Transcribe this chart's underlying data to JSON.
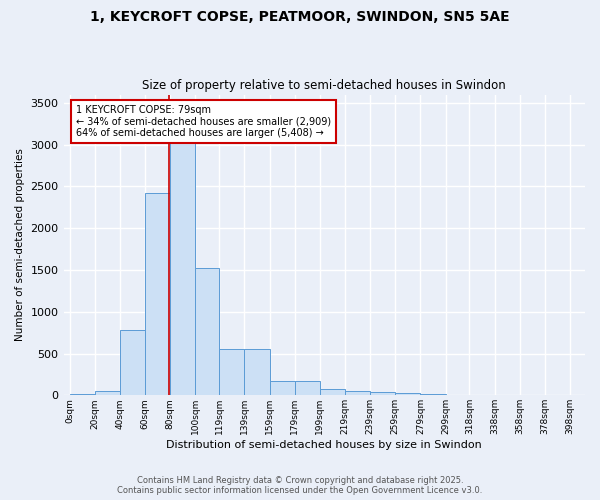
{
  "title_line1": "1, KEYCROFT COPSE, PEATMOOR, SWINDON, SN5 5AE",
  "title_line2": "Size of property relative to semi-detached houses in Swindon",
  "xlabel": "Distribution of semi-detached houses by size in Swindon",
  "ylabel": "Number of semi-detached properties",
  "bin_labels": [
    "0sqm",
    "20sqm",
    "40sqm",
    "60sqm",
    "80sqm",
    "100sqm",
    "119sqm",
    "139sqm",
    "159sqm",
    "179sqm",
    "199sqm",
    "219sqm",
    "239sqm",
    "259sqm",
    "279sqm",
    "299sqm",
    "318sqm",
    "338sqm",
    "358sqm",
    "378sqm",
    "398sqm"
  ],
  "bin_edges": [
    0,
    20,
    40,
    60,
    80,
    100,
    119,
    139,
    159,
    179,
    199,
    219,
    239,
    259,
    279,
    299,
    318,
    338,
    358,
    378,
    398
  ],
  "bar_heights": [
    10,
    50,
    780,
    2420,
    3200,
    1520,
    550,
    550,
    175,
    175,
    80,
    55,
    40,
    30,
    10,
    5,
    5,
    5,
    0,
    0
  ],
  "bar_color": "#cce0f5",
  "bar_edge_color": "#5b9bd5",
  "property_size": 79,
  "vline_color": "#cc0000",
  "annotation_text": "1 KEYCROFT COPSE: 79sqm\n← 34% of semi-detached houses are smaller (2,909)\n64% of semi-detached houses are larger (5,408) →",
  "annotation_box_color": "#ffffff",
  "annotation_box_edge": "#cc0000",
  "ylim": [
    0,
    3600
  ],
  "yticks": [
    0,
    500,
    1000,
    1500,
    2000,
    2500,
    3000,
    3500
  ],
  "background_color": "#eaeff8",
  "grid_color": "#ffffff",
  "footer_line1": "Contains HM Land Registry data © Crown copyright and database right 2025.",
  "footer_line2": "Contains public sector information licensed under the Open Government Licence v3.0."
}
